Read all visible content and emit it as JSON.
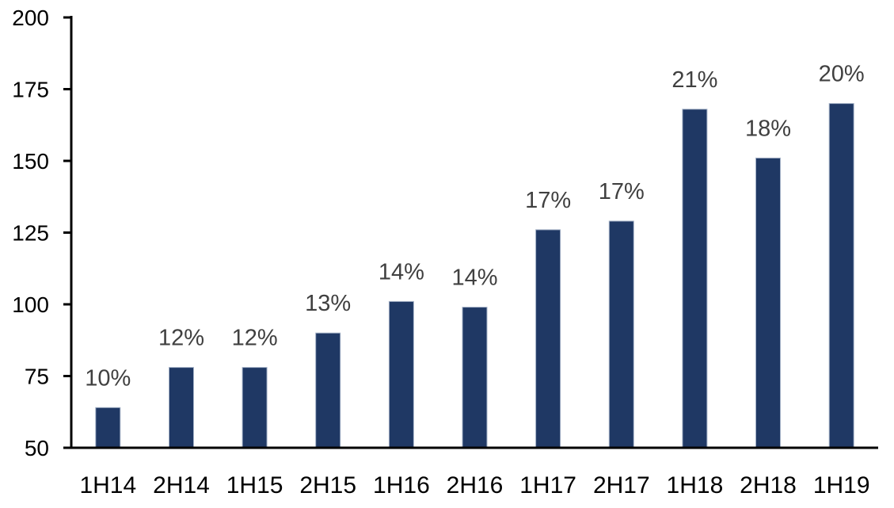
{
  "chart_data": {
    "type": "bar",
    "title": "",
    "xlabel": "",
    "ylabel": "",
    "categories": [
      "1H14",
      "2H14",
      "1H15",
      "2H15",
      "1H16",
      "2H16",
      "1H17",
      "2H17",
      "1H18",
      "2H18",
      "1H19"
    ],
    "values": [
      64,
      78,
      78,
      90,
      101,
      99,
      126,
      129,
      168,
      151,
      170
    ],
    "data_labels": [
      "10%",
      "12%",
      "12%",
      "13%",
      "14%",
      "14%",
      "17%",
      "17%",
      "21%",
      "18%",
      "20%"
    ],
    "ylim": [
      50,
      200
    ],
    "yticks": [
      50,
      75,
      100,
      125,
      150,
      175,
      200
    ],
    "grid": false,
    "legend": null,
    "colors": {
      "bar_fill": "#1F3864",
      "bar_border": "#A3B1C6",
      "data_label": "#404040",
      "axis_line": "#000000",
      "tick_label": "#000000",
      "background": "#FFFFFF"
    }
  }
}
